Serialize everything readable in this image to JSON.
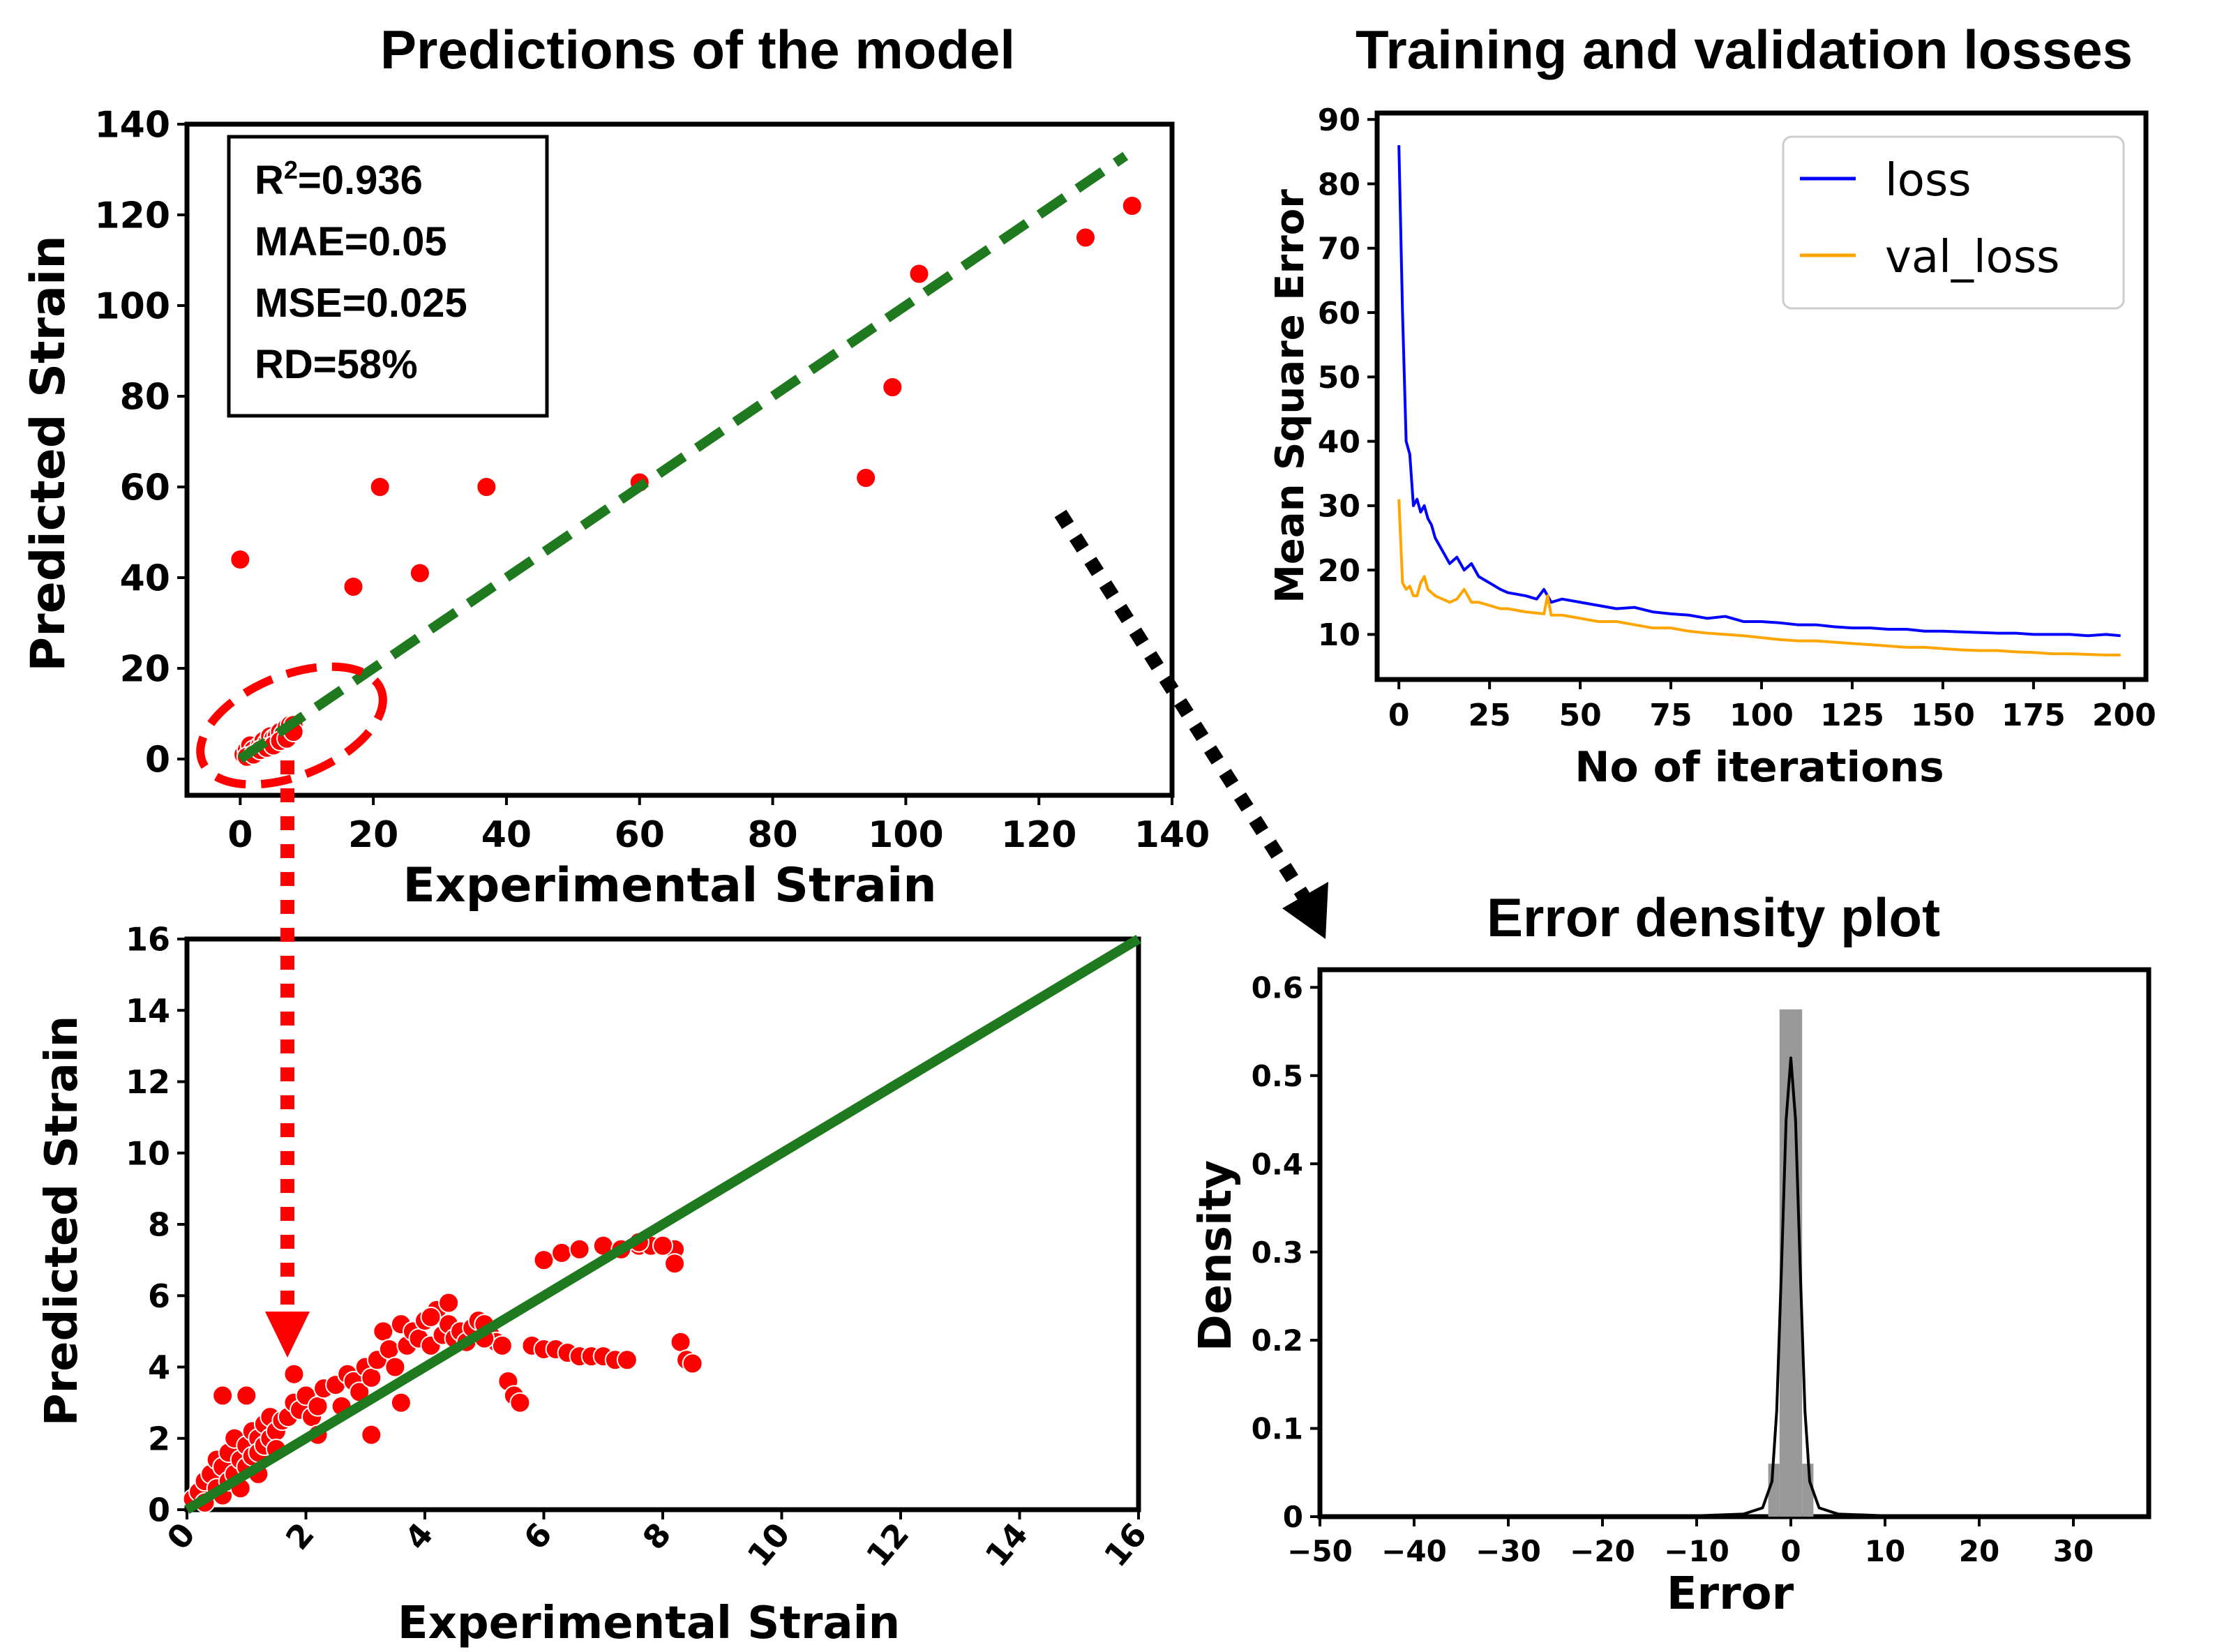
{
  "colors": {
    "points": "#ff0000",
    "fit_line": "#1f7a1f",
    "loss": "#0000ff",
    "val_loss": "#ffa500",
    "hist_bar": "#999999",
    "kde_line": "#000000",
    "arrow_red": "#ff0000",
    "arrow_black": "#000000",
    "zoom_ellipse": "#ff0000"
  },
  "chart_data": [
    {
      "id": "predictions",
      "type": "scatter",
      "title": "Predictions of the model",
      "xlabel": "Experimental Strain",
      "ylabel": "Predicted Strain",
      "xlim": [
        -8,
        140
      ],
      "ylim": [
        -8,
        140
      ],
      "xticks": [
        0,
        20,
        40,
        60,
        80,
        100,
        120,
        140
      ],
      "yticks": [
        0,
        20,
        40,
        60,
        80,
        100,
        120,
        140
      ],
      "stats": [
        {
          "name": "R",
          "sup": "2",
          "value": "=0.936"
        },
        {
          "name": "MAE",
          "sup": "",
          "value": "=0.05"
        },
        {
          "name": "MSE",
          "sup": "",
          "value": "=0.025"
        },
        {
          "name": "RD",
          "sup": "",
          "value": "=58%"
        }
      ],
      "fit_line": {
        "x": [
          0,
          133
        ],
        "y": [
          0,
          133
        ],
        "style": "dashed"
      },
      "x": [
        0,
        17,
        21,
        27,
        37,
        60,
        94,
        98,
        102,
        127,
        134,
        0.5,
        1,
        1.5,
        2,
        2.5,
        3,
        3.5,
        4,
        4.5,
        5,
        5.5,
        6,
        6.5,
        7,
        7.5,
        8,
        1,
        2,
        3,
        4,
        5,
        6,
        7,
        8
      ],
      "y": [
        44,
        38,
        60,
        41,
        60,
        61,
        62,
        82,
        107,
        115,
        122,
        1,
        2,
        3,
        2,
        1.5,
        3,
        4,
        3.5,
        5,
        4.5,
        5,
        6,
        5.5,
        7,
        7.5,
        7.5,
        0.5,
        1,
        2,
        2.5,
        3,
        4,
        4.5,
        6
      ]
    },
    {
      "id": "losses",
      "type": "line",
      "title": "Training and validation losses",
      "xlabel": "No of iterations",
      "ylabel": "Mean Square Error",
      "xlim": [
        -6,
        206
      ],
      "ylim": [
        3,
        91
      ],
      "xticks": [
        0,
        25,
        50,
        75,
        100,
        125,
        150,
        175,
        200
      ],
      "yticks": [
        10,
        20,
        30,
        40,
        50,
        60,
        70,
        80,
        90
      ],
      "legend_position": "top-right",
      "series": [
        {
          "name": "loss",
          "x": [
            0,
            1,
            2,
            3,
            4,
            5,
            6,
            7,
            8,
            9,
            10,
            12,
            14,
            16,
            18,
            20,
            22,
            25,
            28,
            30,
            35,
            38,
            40,
            42,
            45,
            50,
            55,
            60,
            65,
            70,
            75,
            80,
            85,
            90,
            95,
            100,
            105,
            110,
            115,
            120,
            125,
            130,
            135,
            140,
            145,
            150,
            155,
            160,
            165,
            170,
            175,
            180,
            185,
            190,
            195,
            199
          ],
          "y": [
            86,
            60,
            40,
            38,
            30,
            31,
            29,
            30,
            28,
            27,
            25,
            23,
            21,
            22,
            20,
            21,
            19,
            18,
            17,
            16.5,
            16,
            15.5,
            17,
            15,
            15.5,
            15,
            14.5,
            14,
            14.2,
            13.5,
            13.2,
            13,
            12.5,
            12.8,
            12,
            12,
            11.8,
            11.5,
            11.5,
            11.2,
            11,
            11,
            10.8,
            10.8,
            10.5,
            10.5,
            10.4,
            10.3,
            10.2,
            10.2,
            10,
            10,
            10,
            9.8,
            10,
            9.8
          ]
        },
        {
          "name": "val_loss",
          "x": [
            0,
            1,
            2,
            3,
            4,
            5,
            6,
            7,
            8,
            10,
            12,
            14,
            16,
            18,
            20,
            22,
            25,
            28,
            30,
            35,
            40,
            41,
            42,
            45,
            50,
            55,
            60,
            65,
            70,
            75,
            80,
            85,
            90,
            95,
            100,
            105,
            110,
            115,
            120,
            125,
            130,
            135,
            140,
            145,
            150,
            155,
            160,
            165,
            170,
            175,
            180,
            185,
            190,
            195,
            199
          ],
          "y": [
            31,
            18,
            17,
            17.5,
            16,
            16,
            18,
            19,
            17,
            16,
            15.5,
            15,
            15.5,
            17,
            15,
            15,
            14.5,
            14,
            14,
            13.5,
            13.2,
            16,
            13,
            13,
            12.5,
            12,
            12,
            11.5,
            11,
            11,
            10.5,
            10.2,
            10,
            9.8,
            9.5,
            9.2,
            9,
            9,
            8.8,
            8.6,
            8.4,
            8.2,
            8,
            8,
            7.8,
            7.6,
            7.5,
            7.5,
            7.3,
            7.2,
            7,
            7,
            6.9,
            6.8,
            6.8
          ]
        }
      ]
    },
    {
      "id": "zoom",
      "type": "scatter",
      "xlabel": "Experimental Strain",
      "ylabel": "Predicted Strain",
      "xlim": [
        0,
        16
      ],
      "ylim": [
        0,
        16
      ],
      "xticks": [
        0,
        2,
        4,
        6,
        8,
        10,
        12,
        14,
        16
      ],
      "yticks": [
        0,
        2,
        4,
        6,
        8,
        10,
        12,
        14,
        16
      ],
      "fit_line": {
        "x": [
          0,
          16
        ],
        "y": [
          0,
          16
        ],
        "style": "solid"
      },
      "x": [
        0.1,
        0.2,
        0.3,
        0.3,
        0.4,
        0.5,
        0.5,
        0.6,
        0.6,
        0.7,
        0.7,
        0.8,
        0.8,
        0.9,
        0.9,
        1.0,
        1.0,
        1.1,
        1.1,
        1.2,
        1.2,
        1.3,
        1.3,
        1.4,
        1.4,
        1.5,
        1.5,
        1.6,
        1.7,
        1.8,
        1.9,
        2.0,
        2.1,
        2.2,
        2.3,
        2.5,
        2.6,
        2.7,
        2.8,
        2.9,
        3.0,
        3.1,
        3.2,
        3.3,
        3.4,
        3.5,
        3.6,
        3.7,
        3.8,
        3.9,
        4.0,
        4.1,
        4.2,
        4.3,
        4.4,
        4.5,
        4.6,
        4.7,
        4.8,
        4.9,
        5.0,
        5.1,
        5.2,
        5.3,
        5.4,
        5.5,
        5.6,
        5.8,
        6.0,
        6.2,
        6.4,
        6.6,
        6.8,
        7.0,
        7.2,
        7.4,
        7.6,
        7.8,
        8.0,
        8.2,
        8.3,
        8.4,
        8.5,
        6.0,
        6.3,
        6.6,
        7.0,
        7.3,
        7.6,
        8.0,
        8.2,
        0.6,
        1.0,
        1.8,
        3.1,
        4.4,
        1.2,
        2.2,
        3.6,
        5.0,
        4.1
      ],
      "y": [
        0.3,
        0.5,
        0.8,
        0.2,
        1.0,
        0.6,
        1.4,
        1.2,
        0.4,
        1.6,
        0.8,
        1.0,
        2.0,
        1.4,
        0.6,
        1.8,
        1.2,
        2.2,
        1.5,
        2.0,
        1.6,
        2.4,
        1.8,
        2.6,
        2.0,
        2.2,
        1.7,
        2.5,
        2.6,
        3.0,
        2.8,
        3.2,
        2.6,
        2.9,
        3.4,
        3.5,
        2.9,
        3.8,
        3.6,
        3.3,
        4.0,
        3.7,
        4.2,
        5.0,
        4.5,
        4.0,
        5.2,
        4.6,
        5.0,
        4.8,
        5.3,
        4.6,
        5.6,
        4.9,
        5.2,
        4.8,
        5.0,
        4.7,
        5.1,
        5.3,
        5.2,
        4.9,
        4.7,
        4.6,
        3.6,
        3.2,
        3.0,
        4.6,
        4.5,
        4.5,
        4.4,
        4.3,
        4.3,
        4.3,
        4.2,
        4.2,
        7.4,
        7.4,
        7.4,
        7.3,
        4.7,
        4.2,
        4.1,
        7.0,
        7.2,
        7.3,
        7.4,
        7.3,
        7.5,
        7.4,
        6.9,
        3.2,
        3.2,
        3.8,
        2.1,
        5.8,
        1.0,
        2.1,
        3.0,
        4.8,
        5.4
      ]
    },
    {
      "id": "error_density",
      "type": "bar",
      "title": "Error density plot",
      "xlabel": "Error",
      "ylabel": "Density",
      "xlim": [
        -50,
        38
      ],
      "ylim": [
        0,
        0.62
      ],
      "xticks": [
        -50,
        -40,
        -30,
        -20,
        -10,
        0,
        10,
        20,
        30
      ],
      "yticks": [
        0.0,
        0.1,
        0.2,
        0.3,
        0.4,
        0.5,
        0.6
      ],
      "bins": [
        {
          "x0": -2.4,
          "x1": -1.2,
          "value": 0.06
        },
        {
          "x0": -1.2,
          "x1": 0.0,
          "value": 0.575
        },
        {
          "x0": 0.0,
          "x1": 1.2,
          "value": 0.575
        },
        {
          "x0": 1.2,
          "x1": 2.4,
          "value": 0.06
        }
      ],
      "kde": {
        "x": [
          -50,
          -20,
          -10,
          -5,
          -3,
          -2,
          -1.5,
          -1,
          -0.5,
          0,
          0.5,
          1,
          1.5,
          2,
          3,
          5,
          10,
          20,
          35
        ],
        "y": [
          0,
          0,
          0.001,
          0.003,
          0.01,
          0.04,
          0.12,
          0.28,
          0.45,
          0.52,
          0.45,
          0.28,
          0.12,
          0.04,
          0.01,
          0.003,
          0.001,
          0,
          0
        ]
      }
    }
  ]
}
